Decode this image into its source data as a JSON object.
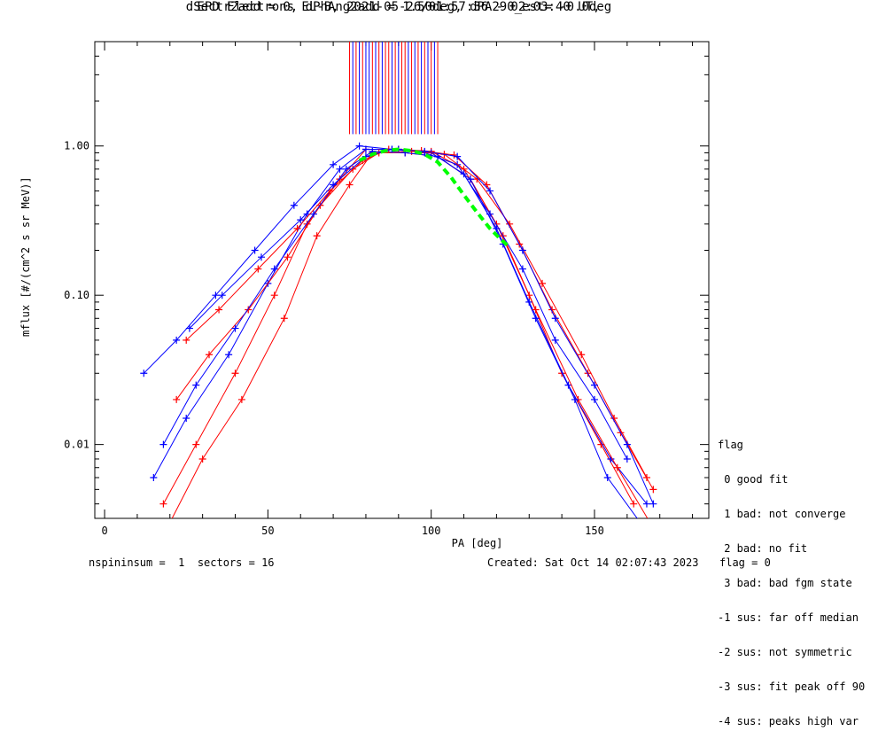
{
  "title_line1": "EPD Electrons EL-B, 2021-05-26/01:57:36 - 02:03:40 UT,",
  "title_line2": "dSectr2add = 0, dPhAng2add = 1.50deg, dPA290_est=  -0.0deg",
  "footer": {
    "left": "nspininsum =  1  sectors = 16",
    "created": "Created: Sat Oct 14 02:07:43 2023",
    "flag": "flag = 0"
  },
  "legend": {
    "title": "flag",
    "items": [
      " 0 good fit",
      " 1 bad: not converge",
      " 2 bad: no fit",
      " 3 bad: bad fgm state",
      "-1 sus: far off median",
      "-2 sus: not symmetric",
      "-3 sus: fit peak off 90",
      "-4 sus: peaks high var"
    ]
  },
  "colors": {
    "red": "#ff0000",
    "blue": "#0000ff",
    "fit": "#00ff00",
    "axes": "#000000"
  },
  "chart_data": {
    "type": "line",
    "xlabel": "PA [deg]",
    "ylabel": "mflux [#/(cm^2 s sr MeV)]",
    "x_ticks": [
      0,
      50,
      100,
      150
    ],
    "y_ticks": [
      {
        "value": 0.01,
        "label": "0.01"
      },
      {
        "value": 0.1,
        "label": "0.10"
      },
      {
        "value": 1.0,
        "label": "1.00"
      }
    ],
    "xlim": [
      -3,
      185
    ],
    "ylim": [
      0.0032,
      5.0
    ],
    "y_scale": "log",
    "grid": false,
    "series": [
      {
        "color": "red",
        "x": [
          18,
          28,
          40,
          52,
          62,
          72,
          80,
          90,
          100,
          110,
          120,
          130,
          140,
          152,
          162
        ],
        "y": [
          0.004,
          0.01,
          0.03,
          0.1,
          0.3,
          0.6,
          0.95,
          0.95,
          0.92,
          0.7,
          0.3,
          0.1,
          0.03,
          0.01,
          0.004
        ]
      },
      {
        "color": "blue",
        "x": [
          15,
          25,
          38,
          50,
          62,
          72,
          80,
          90,
          100,
          110,
          120,
          130,
          142,
          155,
          166
        ],
        "y": [
          0.006,
          0.015,
          0.04,
          0.12,
          0.35,
          0.7,
          0.95,
          0.95,
          0.9,
          0.65,
          0.28,
          0.09,
          0.025,
          0.008,
          0.004
        ]
      },
      {
        "color": "red",
        "x": [
          20,
          30,
          42,
          55,
          65,
          75,
          82,
          92,
          102,
          112,
          122,
          132,
          145,
          157,
          167
        ],
        "y": [
          0.003,
          0.008,
          0.02,
          0.07,
          0.25,
          0.55,
          0.9,
          0.9,
          0.85,
          0.6,
          0.25,
          0.08,
          0.02,
          0.007,
          0.003
        ]
      },
      {
        "color": "blue",
        "x": [
          12,
          22,
          34,
          46,
          58,
          70,
          78,
          88,
          98,
          108,
          118,
          128,
          138,
          150,
          160
        ],
        "y": [
          0.03,
          0.05,
          0.1,
          0.2,
          0.4,
          0.75,
          1.0,
          0.95,
          0.9,
          0.75,
          0.35,
          0.15,
          0.05,
          0.02,
          0.008
        ]
      },
      {
        "color": "red",
        "x": [
          22,
          32,
          44,
          56,
          66,
          76,
          84,
          94,
          104,
          114,
          124,
          134,
          146,
          156,
          166
        ],
        "y": [
          0.02,
          0.04,
          0.08,
          0.18,
          0.4,
          0.7,
          0.9,
          0.92,
          0.88,
          0.6,
          0.3,
          0.12,
          0.04,
          0.015,
          0.006
        ]
      },
      {
        "color": "blue",
        "x": [
          18,
          28,
          40,
          52,
          64,
          74,
          82,
          92,
          102,
          112,
          122,
          132,
          144,
          154,
          164
        ],
        "y": [
          0.01,
          0.025,
          0.06,
          0.15,
          0.35,
          0.7,
          0.92,
          0.9,
          0.85,
          0.6,
          0.22,
          0.07,
          0.02,
          0.006,
          0.003
        ]
      },
      {
        "color": "red",
        "x": [
          25,
          35,
          47,
          59,
          69,
          79,
          87,
          97,
          107,
          117,
          127,
          137,
          148,
          158,
          168
        ],
        "y": [
          0.05,
          0.08,
          0.15,
          0.28,
          0.5,
          0.8,
          0.95,
          0.93,
          0.87,
          0.55,
          0.22,
          0.08,
          0.03,
          0.012,
          0.005
        ]
      },
      {
        "color": "blue",
        "x": [
          26,
          36,
          48,
          60,
          70,
          80,
          88,
          98,
          108,
          118,
          128,
          138,
          150,
          160,
          168
        ],
        "y": [
          0.06,
          0.1,
          0.18,
          0.32,
          0.55,
          0.85,
          0.95,
          0.92,
          0.85,
          0.5,
          0.2,
          0.07,
          0.025,
          0.01,
          0.004
        ]
      }
    ],
    "vertical_marks": [
      {
        "color": "red",
        "x": [
          75,
          77,
          79,
          82,
          84,
          86,
          87,
          89,
          91,
          92,
          94,
          96,
          98,
          100,
          102
        ]
      },
      {
        "color": "blue",
        "x": [
          76,
          78,
          80,
          81,
          83,
          85,
          88,
          90,
          93,
          95,
          97,
          99,
          101
        ]
      }
    ],
    "vertical_marks_y": [
      1.2,
      5.0
    ],
    "fit": {
      "color": "fit",
      "x": [
        78,
        82,
        86,
        90,
        94,
        98,
        102,
        106,
        110,
        114,
        118,
        121,
        124
      ],
      "y": [
        0.8,
        0.88,
        0.93,
        0.95,
        0.93,
        0.88,
        0.78,
        0.62,
        0.47,
        0.36,
        0.28,
        0.24,
        0.21
      ]
    }
  }
}
